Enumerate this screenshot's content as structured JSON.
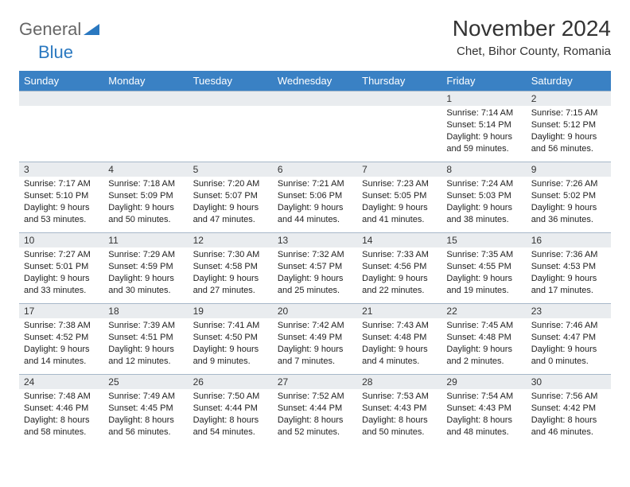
{
  "logo": {
    "word1": "General",
    "word2": "Blue"
  },
  "title": "November 2024",
  "location": "Chet, Bihor County, Romania",
  "colors": {
    "header_bg": "#3a81c4",
    "header_text": "#ffffff",
    "daynum_bg": "#e9ecef",
    "border": "#a7b8c9",
    "logo_gray": "#666666",
    "logo_blue": "#2a78c0"
  },
  "weekdays": [
    "Sunday",
    "Monday",
    "Tuesday",
    "Wednesday",
    "Thursday",
    "Friday",
    "Saturday"
  ],
  "weeks": [
    [
      {
        "n": "",
        "lines": []
      },
      {
        "n": "",
        "lines": []
      },
      {
        "n": "",
        "lines": []
      },
      {
        "n": "",
        "lines": []
      },
      {
        "n": "",
        "lines": []
      },
      {
        "n": "1",
        "lines": [
          "Sunrise: 7:14 AM",
          "Sunset: 5:14 PM",
          "Daylight: 9 hours and 59 minutes."
        ]
      },
      {
        "n": "2",
        "lines": [
          "Sunrise: 7:15 AM",
          "Sunset: 5:12 PM",
          "Daylight: 9 hours and 56 minutes."
        ]
      }
    ],
    [
      {
        "n": "3",
        "lines": [
          "Sunrise: 7:17 AM",
          "Sunset: 5:10 PM",
          "Daylight: 9 hours and 53 minutes."
        ]
      },
      {
        "n": "4",
        "lines": [
          "Sunrise: 7:18 AM",
          "Sunset: 5:09 PM",
          "Daylight: 9 hours and 50 minutes."
        ]
      },
      {
        "n": "5",
        "lines": [
          "Sunrise: 7:20 AM",
          "Sunset: 5:07 PM",
          "Daylight: 9 hours and 47 minutes."
        ]
      },
      {
        "n": "6",
        "lines": [
          "Sunrise: 7:21 AM",
          "Sunset: 5:06 PM",
          "Daylight: 9 hours and 44 minutes."
        ]
      },
      {
        "n": "7",
        "lines": [
          "Sunrise: 7:23 AM",
          "Sunset: 5:05 PM",
          "Daylight: 9 hours and 41 minutes."
        ]
      },
      {
        "n": "8",
        "lines": [
          "Sunrise: 7:24 AM",
          "Sunset: 5:03 PM",
          "Daylight: 9 hours and 38 minutes."
        ]
      },
      {
        "n": "9",
        "lines": [
          "Sunrise: 7:26 AM",
          "Sunset: 5:02 PM",
          "Daylight: 9 hours and 36 minutes."
        ]
      }
    ],
    [
      {
        "n": "10",
        "lines": [
          "Sunrise: 7:27 AM",
          "Sunset: 5:01 PM",
          "Daylight: 9 hours and 33 minutes."
        ]
      },
      {
        "n": "11",
        "lines": [
          "Sunrise: 7:29 AM",
          "Sunset: 4:59 PM",
          "Daylight: 9 hours and 30 minutes."
        ]
      },
      {
        "n": "12",
        "lines": [
          "Sunrise: 7:30 AM",
          "Sunset: 4:58 PM",
          "Daylight: 9 hours and 27 minutes."
        ]
      },
      {
        "n": "13",
        "lines": [
          "Sunrise: 7:32 AM",
          "Sunset: 4:57 PM",
          "Daylight: 9 hours and 25 minutes."
        ]
      },
      {
        "n": "14",
        "lines": [
          "Sunrise: 7:33 AM",
          "Sunset: 4:56 PM",
          "Daylight: 9 hours and 22 minutes."
        ]
      },
      {
        "n": "15",
        "lines": [
          "Sunrise: 7:35 AM",
          "Sunset: 4:55 PM",
          "Daylight: 9 hours and 19 minutes."
        ]
      },
      {
        "n": "16",
        "lines": [
          "Sunrise: 7:36 AM",
          "Sunset: 4:53 PM",
          "Daylight: 9 hours and 17 minutes."
        ]
      }
    ],
    [
      {
        "n": "17",
        "lines": [
          "Sunrise: 7:38 AM",
          "Sunset: 4:52 PM",
          "Daylight: 9 hours and 14 minutes."
        ]
      },
      {
        "n": "18",
        "lines": [
          "Sunrise: 7:39 AM",
          "Sunset: 4:51 PM",
          "Daylight: 9 hours and 12 minutes."
        ]
      },
      {
        "n": "19",
        "lines": [
          "Sunrise: 7:41 AM",
          "Sunset: 4:50 PM",
          "Daylight: 9 hours and 9 minutes."
        ]
      },
      {
        "n": "20",
        "lines": [
          "Sunrise: 7:42 AM",
          "Sunset: 4:49 PM",
          "Daylight: 9 hours and 7 minutes."
        ]
      },
      {
        "n": "21",
        "lines": [
          "Sunrise: 7:43 AM",
          "Sunset: 4:48 PM",
          "Daylight: 9 hours and 4 minutes."
        ]
      },
      {
        "n": "22",
        "lines": [
          "Sunrise: 7:45 AM",
          "Sunset: 4:48 PM",
          "Daylight: 9 hours and 2 minutes."
        ]
      },
      {
        "n": "23",
        "lines": [
          "Sunrise: 7:46 AM",
          "Sunset: 4:47 PM",
          "Daylight: 9 hours and 0 minutes."
        ]
      }
    ],
    [
      {
        "n": "24",
        "lines": [
          "Sunrise: 7:48 AM",
          "Sunset: 4:46 PM",
          "Daylight: 8 hours and 58 minutes."
        ]
      },
      {
        "n": "25",
        "lines": [
          "Sunrise: 7:49 AM",
          "Sunset: 4:45 PM",
          "Daylight: 8 hours and 56 minutes."
        ]
      },
      {
        "n": "26",
        "lines": [
          "Sunrise: 7:50 AM",
          "Sunset: 4:44 PM",
          "Daylight: 8 hours and 54 minutes."
        ]
      },
      {
        "n": "27",
        "lines": [
          "Sunrise: 7:52 AM",
          "Sunset: 4:44 PM",
          "Daylight: 8 hours and 52 minutes."
        ]
      },
      {
        "n": "28",
        "lines": [
          "Sunrise: 7:53 AM",
          "Sunset: 4:43 PM",
          "Daylight: 8 hours and 50 minutes."
        ]
      },
      {
        "n": "29",
        "lines": [
          "Sunrise: 7:54 AM",
          "Sunset: 4:43 PM",
          "Daylight: 8 hours and 48 minutes."
        ]
      },
      {
        "n": "30",
        "lines": [
          "Sunrise: 7:56 AM",
          "Sunset: 4:42 PM",
          "Daylight: 8 hours and 46 minutes."
        ]
      }
    ]
  ]
}
